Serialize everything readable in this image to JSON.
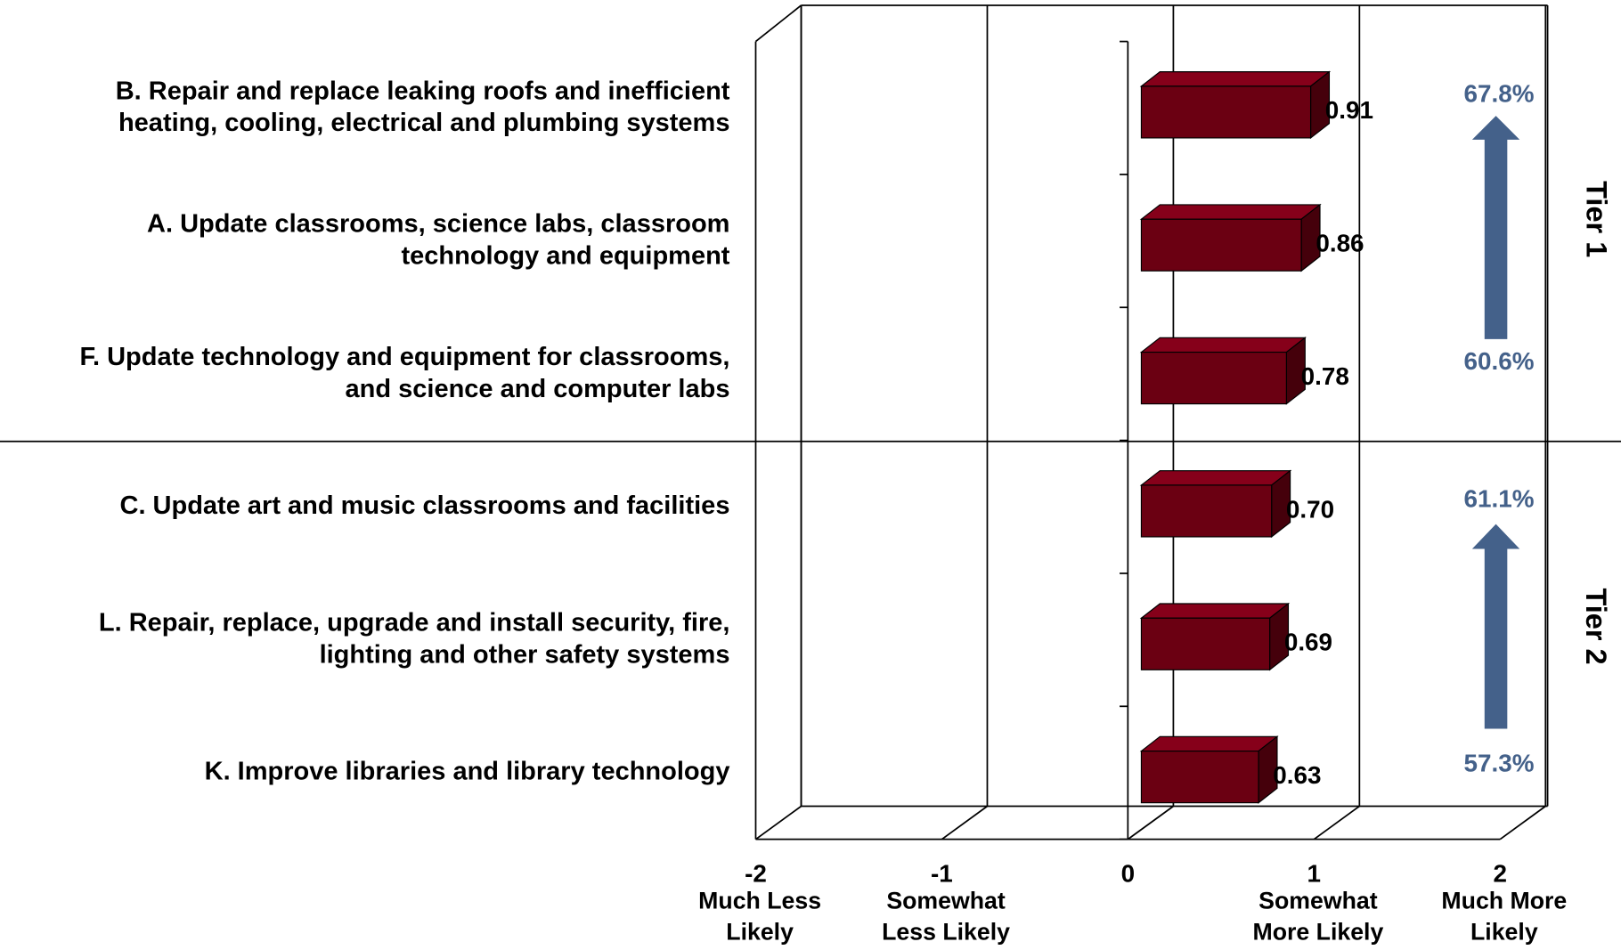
{
  "chart_data": {
    "type": "bar3d_horizontal",
    "categories": [
      "B. Repair and replace leaking roofs and inefficient\nheating, cooling, electrical and plumbing systems",
      "A. Update classrooms, science labs, classroom\ntechnology and equipment",
      "F. Update technology and equipment for classrooms,\nand science and computer labs",
      "C. Update art and music classrooms and facilities",
      "L. Repair, replace, upgrade and install security, fire,\nlighting and other safety systems",
      "K. Improve libraries and library technology"
    ],
    "values": [
      0.91,
      0.86,
      0.78,
      0.7,
      0.69,
      0.63
    ],
    "value_labels": [
      "0.91",
      "0.86",
      "0.78",
      "0.70",
      "0.69",
      "0.63"
    ],
    "color": "#6b0012",
    "xlim": [
      -2,
      2
    ],
    "xticks": [
      -2,
      -1,
      0,
      1,
      2
    ],
    "xtick_descriptions": [
      "Much Less\nLikely",
      "Somewhat\nLess Likely",
      "",
      "Somewhat\nMore Likely",
      "Much More\nLikely"
    ],
    "annotations": [
      "67.8%",
      "60.6%",
      "61.1%",
      "57.3%"
    ],
    "annotation_color": "#44618a",
    "tiers": [
      "Tier 1",
      "Tier 2"
    ]
  }
}
